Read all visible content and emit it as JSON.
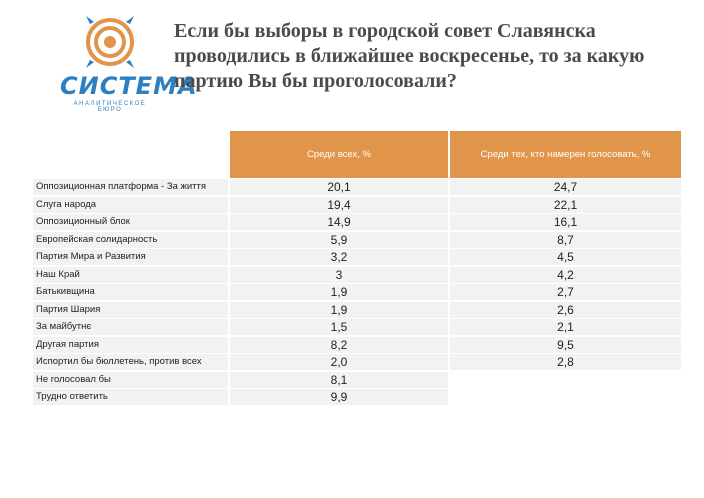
{
  "logo": {
    "name": "СИСТЕМА",
    "subtitle": "АНАЛИТИЧЕСКОЕ БЮРО"
  },
  "title": "Если бы выборы в городской совет Славянска проводились в ближайшее воскресенье, то за какую партию Вы бы проголосовали?",
  "table": {
    "header": {
      "col1": "Среди всех, %",
      "col2": "Среди тех, кто намерен голосовать, %"
    },
    "rows": [
      {
        "label": "Оппозиционная платформа - За життя",
        "v1": "20,1",
        "v2": "24,7"
      },
      {
        "label": "Слуга народа",
        "v1": "19,4",
        "v2": "22,1"
      },
      {
        "label": "Оппозиционный блок",
        "v1": "14,9",
        "v2": "16,1"
      },
      {
        "label": "Европейская солидарность",
        "v1": "5,9",
        "v2": "8,7"
      },
      {
        "label": "Партия Мира и Развития",
        "v1": "3,2",
        "v2": "4,5"
      },
      {
        "label": "Наш Край",
        "v1": "3",
        "v2": "4,2"
      },
      {
        "label": "Батькивщина",
        "v1": "1,9",
        "v2": "2,7"
      },
      {
        "label": "Партия Шария",
        "v1": "1,9",
        "v2": "2,6"
      },
      {
        "label": "За майбутнє",
        "v1": "1,5",
        "v2": "2,1"
      },
      {
        "label": "Другая партия",
        "v1": "8,2",
        "v2": "9,5"
      },
      {
        "label": "Испортил бы бюллетень, против всех",
        "v1": "2,0",
        "v2": "2,8"
      },
      {
        "label": "Не голосовал бы",
        "v1": "8,1",
        "v2": ""
      },
      {
        "label": "Трудно ответить",
        "v1": "9,9",
        "v2": ""
      }
    ]
  }
}
